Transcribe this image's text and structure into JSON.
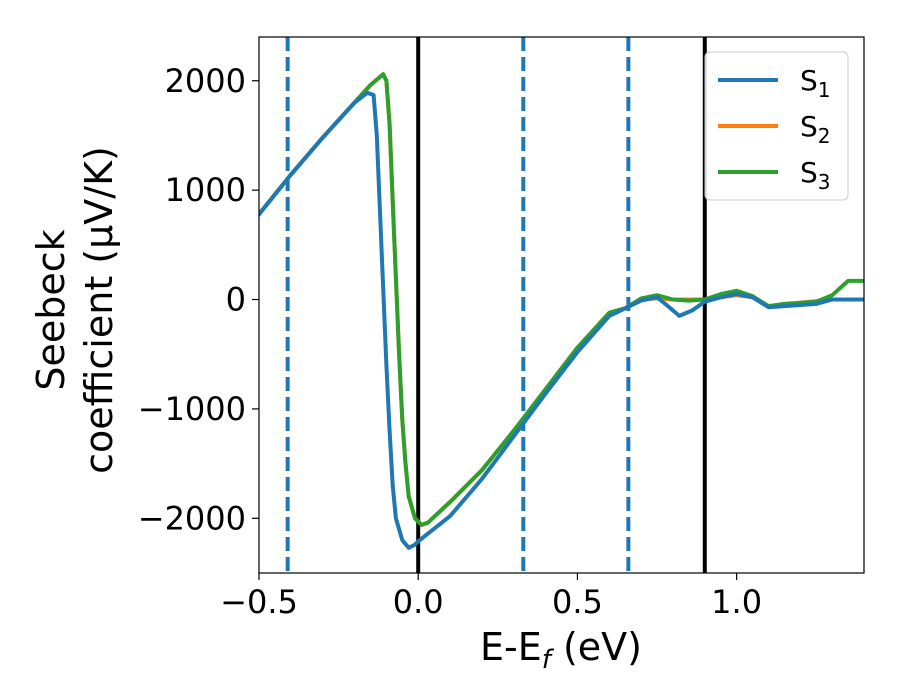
{
  "chart_data": {
    "type": "line",
    "xlabel": "E-E",
    "xlabel_sub": "f",
    "xlabel_unit": " (eV)",
    "ylabel_line1": "Seebeck",
    "ylabel_line2": "coefficient  (μV/K)",
    "xlim": [
      -0.5,
      1.4
    ],
    "ylim": [
      -2500,
      2400
    ],
    "xticks": [
      -0.5,
      0.0,
      0.5,
      1.0
    ],
    "xtick_labels": [
      "−0.5",
      "0.0",
      "0.5",
      "1.0"
    ],
    "yticks": [
      -2000,
      -1000,
      0,
      1000,
      2000
    ],
    "ytick_labels": [
      "−2000",
      "−1000",
      "0",
      "1000",
      "2000"
    ],
    "legend_position": "top-right",
    "vlines": [
      {
        "x": -0.41,
        "style": "dashed",
        "color": "#1f77b4"
      },
      {
        "x": 0.0,
        "style": "solid",
        "color": "#000000"
      },
      {
        "x": 0.33,
        "style": "dashed",
        "color": "#1f77b4"
      },
      {
        "x": 0.66,
        "style": "dashed",
        "color": "#1f77b4"
      },
      {
        "x": 0.9,
        "style": "solid",
        "color": "#000000"
      }
    ],
    "series": [
      {
        "name": "S",
        "sub": "1",
        "color": "#1f77b4",
        "points": [
          [
            -0.5,
            780
          ],
          [
            -0.4,
            1140
          ],
          [
            -0.3,
            1480
          ],
          [
            -0.2,
            1800
          ],
          [
            -0.16,
            1890
          ],
          [
            -0.14,
            1870
          ],
          [
            -0.13,
            1500
          ],
          [
            -0.12,
            800
          ],
          [
            -0.11,
            100
          ],
          [
            -0.1,
            -600
          ],
          [
            -0.09,
            -1200
          ],
          [
            -0.08,
            -1700
          ],
          [
            -0.07,
            -2000
          ],
          [
            -0.05,
            -2200
          ],
          [
            -0.03,
            -2270
          ],
          [
            -0.01,
            -2240
          ],
          [
            0.0,
            -2210
          ],
          [
            0.1,
            -1980
          ],
          [
            0.2,
            -1640
          ],
          [
            0.3,
            -1250
          ],
          [
            0.4,
            -860
          ],
          [
            0.5,
            -480
          ],
          [
            0.6,
            -150
          ],
          [
            0.65,
            -80
          ],
          [
            0.7,
            -10
          ],
          [
            0.75,
            20
          ],
          [
            0.78,
            -50
          ],
          [
            0.82,
            -150
          ],
          [
            0.86,
            -100
          ],
          [
            0.9,
            -20
          ],
          [
            0.95,
            20
          ],
          [
            1.0,
            50
          ],
          [
            1.05,
            20
          ],
          [
            1.1,
            -70
          ],
          [
            1.15,
            -60
          ],
          [
            1.2,
            -50
          ],
          [
            1.25,
            -40
          ],
          [
            1.3,
            0
          ],
          [
            1.4,
            0
          ]
        ]
      },
      {
        "name": "S",
        "sub": "2",
        "color": "#ff7f0e",
        "points": [
          [
            -0.5,
            780
          ],
          [
            -0.4,
            1140
          ],
          [
            -0.3,
            1480
          ],
          [
            -0.2,
            1800
          ],
          [
            -0.15,
            1960
          ],
          [
            -0.11,
            2060
          ],
          [
            -0.1,
            2000
          ],
          [
            -0.09,
            1600
          ],
          [
            -0.08,
            900
          ],
          [
            -0.07,
            200
          ],
          [
            -0.06,
            -500
          ],
          [
            -0.05,
            -1100
          ],
          [
            -0.04,
            -1500
          ],
          [
            -0.03,
            -1800
          ],
          [
            -0.01,
            -2000
          ],
          [
            0.01,
            -2060
          ],
          [
            0.03,
            -2040
          ],
          [
            0.1,
            -1850
          ],
          [
            0.2,
            -1560
          ],
          [
            0.3,
            -1200
          ],
          [
            0.4,
            -820
          ],
          [
            0.5,
            -440
          ],
          [
            0.6,
            -120
          ],
          [
            0.65,
            -80
          ],
          [
            0.7,
            0
          ],
          [
            0.75,
            10
          ],
          [
            0.8,
            0
          ],
          [
            0.9,
            0
          ],
          [
            1.0,
            40
          ],
          [
            1.05,
            20
          ],
          [
            1.1,
            -60
          ],
          [
            1.15,
            -50
          ],
          [
            1.2,
            -30
          ],
          [
            1.3,
            0
          ],
          [
            1.4,
            0
          ]
        ]
      },
      {
        "name": "S",
        "sub": "3",
        "color": "#2ca02c",
        "points": [
          [
            -0.5,
            780
          ],
          [
            -0.4,
            1140
          ],
          [
            -0.3,
            1480
          ],
          [
            -0.2,
            1800
          ],
          [
            -0.15,
            1960
          ],
          [
            -0.11,
            2060
          ],
          [
            -0.1,
            2000
          ],
          [
            -0.09,
            1600
          ],
          [
            -0.08,
            900
          ],
          [
            -0.07,
            200
          ],
          [
            -0.06,
            -500
          ],
          [
            -0.05,
            -1100
          ],
          [
            -0.04,
            -1500
          ],
          [
            -0.03,
            -1800
          ],
          [
            -0.01,
            -2000
          ],
          [
            0.01,
            -2060
          ],
          [
            0.03,
            -2040
          ],
          [
            0.1,
            -1850
          ],
          [
            0.2,
            -1560
          ],
          [
            0.3,
            -1200
          ],
          [
            0.4,
            -820
          ],
          [
            0.5,
            -440
          ],
          [
            0.6,
            -120
          ],
          [
            0.65,
            -80
          ],
          [
            0.7,
            10
          ],
          [
            0.75,
            40
          ],
          [
            0.8,
            0
          ],
          [
            0.85,
            -10
          ],
          [
            0.9,
            0
          ],
          [
            0.95,
            50
          ],
          [
            1.0,
            80
          ],
          [
            1.05,
            30
          ],
          [
            1.1,
            -60
          ],
          [
            1.15,
            -40
          ],
          [
            1.2,
            -30
          ],
          [
            1.25,
            -20
          ],
          [
            1.3,
            40
          ],
          [
            1.35,
            170
          ],
          [
            1.4,
            170
          ]
        ]
      }
    ]
  }
}
